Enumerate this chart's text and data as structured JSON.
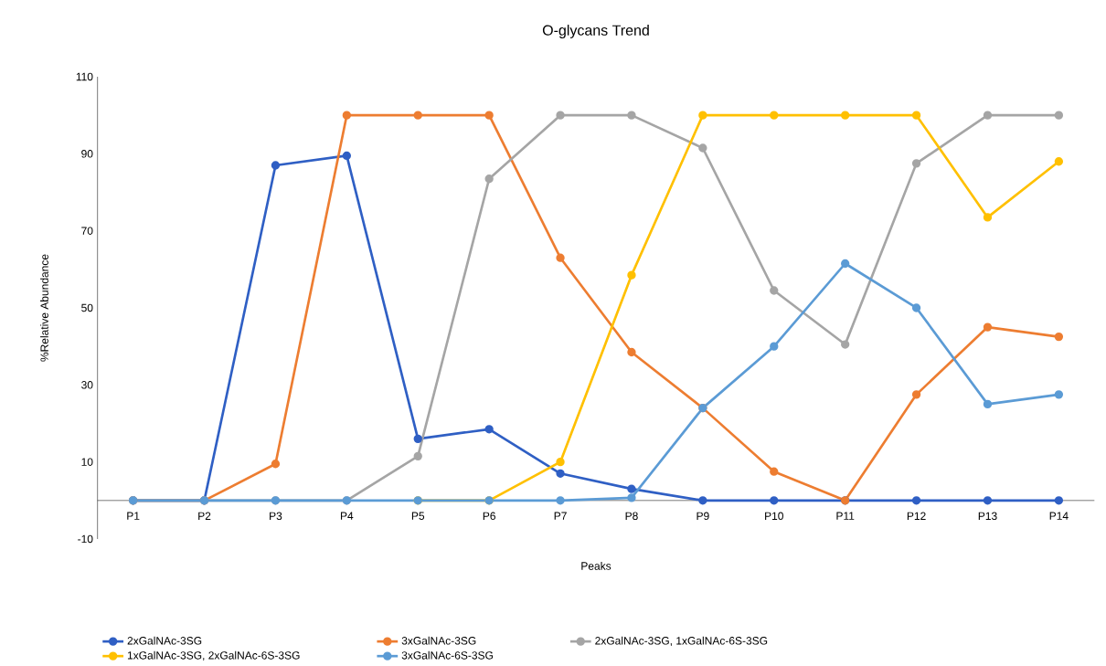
{
  "chart_data": {
    "type": "line",
    "title": "O-glycans Trend",
    "xlabel": "Peaks",
    "ylabel": "%Relative Abundance",
    "categories": [
      "P1",
      "P2",
      "P3",
      "P4",
      "P5",
      "P6",
      "P7",
      "P8",
      "P9",
      "P10",
      "P11",
      "P12",
      "P13",
      "P14"
    ],
    "series": [
      {
        "name": "2xGalNAc-3SG",
        "color": "#2f5fc4",
        "values": [
          0,
          0,
          87,
          89.5,
          16,
          18.5,
          7,
          3,
          0,
          0,
          0,
          0,
          0,
          0
        ]
      },
      {
        "name": "3xGalNAc-3SG",
        "color": "#ed7d31",
        "values": [
          0,
          0,
          9.5,
          100,
          100,
          100,
          63,
          38.5,
          24,
          7.5,
          0,
          27.5,
          45,
          42.5
        ]
      },
      {
        "name": "2xGalNAc-3SG, 1xGalNAc-6S-3SG",
        "color": "#a5a5a5",
        "values": [
          0,
          0,
          0,
          0,
          11.5,
          83.5,
          100,
          100,
          91.5,
          54.5,
          40.5,
          87.5,
          100,
          100
        ]
      },
      {
        "name": "1xGalNAc-3SG, 2xGalNAc-6S-3SG",
        "color": "#ffc000",
        "values": [
          null,
          null,
          null,
          null,
          0,
          0,
          10,
          58.5,
          100,
          100,
          100,
          100,
          73.5,
          88
        ]
      },
      {
        "name": "3xGalNAc-6S-3SG",
        "color": "#5b9bd5",
        "values": [
          0,
          0,
          0,
          0,
          0,
          0,
          0,
          0.7,
          24,
          40,
          61.5,
          50,
          25,
          27.5
        ]
      }
    ],
    "ylim": [
      -10,
      110
    ],
    "yticks": [
      -10,
      10,
      30,
      50,
      70,
      90,
      110
    ],
    "grid": false,
    "legend": "bottom",
    "marker": "circle",
    "line_style": "solid"
  }
}
